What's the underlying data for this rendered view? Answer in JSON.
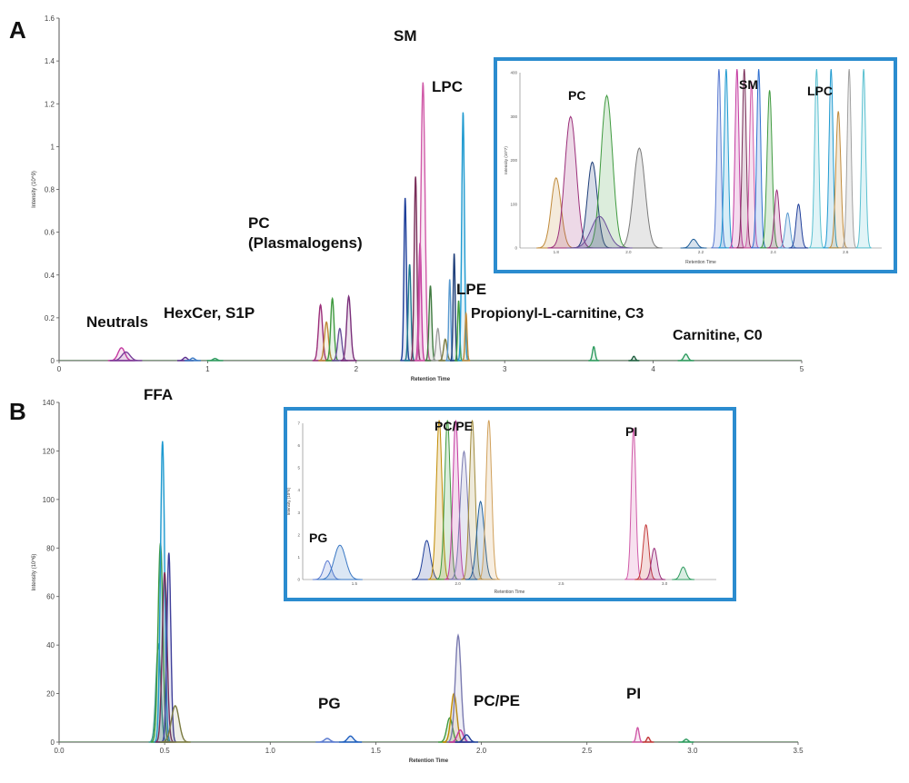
{
  "chart_data": [
    {
      "panel": "A",
      "type": "line",
      "xlabel": "Retention Time",
      "ylabel": "Intensity (10^9)",
      "xlim": [
        0,
        5
      ],
      "ylim": [
        0,
        1.6
      ],
      "x_ticks": [
        "0",
        "1",
        "2",
        "3",
        "4",
        "5"
      ],
      "y_ticks": [
        "0",
        "0.2",
        "0.4",
        "0.6",
        "0.8",
        "1",
        "1.2",
        "1.4",
        "1.6"
      ],
      "annotations": [
        "SM",
        "LPC",
        "PC",
        "(Plasmalogens)",
        "LPE",
        "Neutrals",
        "HexCer, S1P",
        "Propionyl-L-carnitine, C3",
        "Carnitine, C0"
      ],
      "peaks": [
        {
          "x": 0.42,
          "y": 0.06,
          "w": 0.05,
          "color": "#c43aa0"
        },
        {
          "x": 0.45,
          "y": 0.04,
          "w": 0.06,
          "color": "#7a3f9a"
        },
        {
          "x": 0.85,
          "y": 0.015,
          "w": 0.03,
          "color": "#5b2d8f"
        },
        {
          "x": 0.9,
          "y": 0.012,
          "w": 0.03,
          "color": "#3a78c4"
        },
        {
          "x": 1.05,
          "y": 0.01,
          "w": 0.03,
          "color": "#2e9b5f"
        },
        {
          "x": 1.76,
          "y": 0.26,
          "w": 0.03,
          "color": "#9b2f7a"
        },
        {
          "x": 1.8,
          "y": 0.18,
          "w": 0.03,
          "color": "#c08a3a"
        },
        {
          "x": 1.84,
          "y": 0.29,
          "w": 0.025,
          "color": "#3f9a3f"
        },
        {
          "x": 1.89,
          "y": 0.15,
          "w": 0.03,
          "color": "#6a4f9a"
        },
        {
          "x": 1.95,
          "y": 0.3,
          "w": 0.03,
          "color": "#7a2f7a"
        },
        {
          "x": 2.33,
          "y": 0.76,
          "w": 0.018,
          "color": "#1f3f9a"
        },
        {
          "x": 2.36,
          "y": 0.45,
          "w": 0.02,
          "color": "#1f7a8f"
        },
        {
          "x": 2.4,
          "y": 0.86,
          "w": 0.02,
          "color": "#7a2f5a"
        },
        {
          "x": 2.43,
          "y": 0.55,
          "w": 0.02,
          "color": "#c43aa0"
        },
        {
          "x": 2.45,
          "y": 1.3,
          "w": 0.03,
          "color": "#d05aa8"
        },
        {
          "x": 2.5,
          "y": 0.35,
          "w": 0.02,
          "color": "#3f7a3f"
        },
        {
          "x": 2.55,
          "y": 0.15,
          "w": 0.025,
          "color": "#a0a0a0"
        },
        {
          "x": 2.6,
          "y": 0.1,
          "w": 0.025,
          "color": "#7a7a3f"
        },
        {
          "x": 2.63,
          "y": 0.38,
          "w": 0.015,
          "color": "#5a9ad0"
        },
        {
          "x": 2.66,
          "y": 0.5,
          "w": 0.015,
          "color": "#1f3f7a"
        },
        {
          "x": 2.69,
          "y": 0.28,
          "w": 0.015,
          "color": "#3f9a3f"
        },
        {
          "x": 2.72,
          "y": 1.16,
          "w": 0.02,
          "color": "#1f9ad0"
        },
        {
          "x": 2.74,
          "y": 0.22,
          "w": 0.015,
          "color": "#c08a3a"
        },
        {
          "x": 3.6,
          "y": 0.065,
          "w": 0.02,
          "color": "#2e9b5f"
        },
        {
          "x": 3.87,
          "y": 0.02,
          "w": 0.02,
          "color": "#1f5f3f"
        },
        {
          "x": 4.22,
          "y": 0.03,
          "w": 0.03,
          "color": "#2e9b5f"
        }
      ]
    },
    {
      "panel": "A-inset",
      "type": "line",
      "xlabel": "Retention Time",
      "ylabel": "Intensity (10^7)",
      "annotations": [
        "PC",
        "SM",
        "LPC"
      ],
      "y_ticks": [
        "0",
        "100",
        "200",
        "300",
        "400"
      ],
      "x_ticks": [
        "1.8",
        "2.0",
        "2.2",
        "2.4",
        "2.6"
      ],
      "peaks": [
        {
          "x": 0.1,
          "y": 0.4,
          "w": 0.03,
          "color": "#c08a3a"
        },
        {
          "x": 0.14,
          "y": 0.75,
          "w": 0.035,
          "color": "#9b2f7a"
        },
        {
          "x": 0.2,
          "y": 0.49,
          "w": 0.03,
          "color": "#1f3f7a"
        },
        {
          "x": 0.24,
          "y": 0.87,
          "w": 0.035,
          "color": "#3f9a3f"
        },
        {
          "x": 0.33,
          "y": 0.57,
          "w": 0.035,
          "color": "#7a7a7a"
        },
        {
          "x": 0.22,
          "y": 0.18,
          "w": 0.05,
          "color": "#6a4f9a"
        },
        {
          "x": 0.48,
          "y": 0.05,
          "w": 0.02,
          "color": "#1f5f9a"
        },
        {
          "x": 0.55,
          "y": 1.2,
          "w": 0.012,
          "color": "#5a7ad0"
        },
        {
          "x": 0.57,
          "y": 1.2,
          "w": 0.012,
          "color": "#1f9ad0"
        },
        {
          "x": 0.6,
          "y": 1.2,
          "w": 0.012,
          "color": "#c43aa0"
        },
        {
          "x": 0.62,
          "y": 1.2,
          "w": 0.012,
          "color": "#7a2f5a"
        },
        {
          "x": 0.64,
          "y": 0.95,
          "w": 0.012,
          "color": "#d05aa8"
        },
        {
          "x": 0.66,
          "y": 1.2,
          "w": 0.012,
          "color": "#2e6fd0"
        },
        {
          "x": 0.69,
          "y": 0.9,
          "w": 0.015,
          "color": "#3f9a3f"
        },
        {
          "x": 0.71,
          "y": 0.33,
          "w": 0.015,
          "color": "#9b2f7a"
        },
        {
          "x": 0.74,
          "y": 0.2,
          "w": 0.015,
          "color": "#5a9ad0"
        },
        {
          "x": 0.77,
          "y": 0.25,
          "w": 0.015,
          "color": "#1f3f9a"
        },
        {
          "x": 0.82,
          "y": 1.2,
          "w": 0.012,
          "color": "#5ac0d0"
        },
        {
          "x": 0.86,
          "y": 1.2,
          "w": 0.012,
          "color": "#1f9ad0"
        },
        {
          "x": 0.88,
          "y": 0.78,
          "w": 0.015,
          "color": "#c08a3a"
        },
        {
          "x": 0.91,
          "y": 1.2,
          "w": 0.012,
          "color": "#a0a0a0"
        },
        {
          "x": 0.95,
          "y": 1.2,
          "w": 0.012,
          "color": "#5ac0d0"
        }
      ]
    },
    {
      "panel": "B",
      "type": "line",
      "xlabel": "Retention Time",
      "ylabel": "Intensity (10^6)",
      "xlim": [
        0,
        3.5
      ],
      "ylim": [
        0,
        140
      ],
      "x_ticks": [
        "0.0",
        "0.5",
        "1.0",
        "1.5",
        "2.0",
        "2.5",
        "3.0",
        "3.5"
      ],
      "y_ticks": [
        "0",
        "20",
        "40",
        "60",
        "80",
        "100",
        "120",
        "140"
      ],
      "annotations": [
        "FFA",
        "PG",
        "PC/PE",
        "PI"
      ],
      "peaks": [
        {
          "x": 0.47,
          "y": 40,
          "w": 0.025,
          "color": "#3f9a8f"
        },
        {
          "x": 0.48,
          "y": 82,
          "w": 0.025,
          "color": "#3f9a3f"
        },
        {
          "x": 0.49,
          "y": 124,
          "w": 0.022,
          "color": "#1f9ad0"
        },
        {
          "x": 0.5,
          "y": 70,
          "w": 0.025,
          "color": "#7a2f5a"
        },
        {
          "x": 0.52,
          "y": 78,
          "w": 0.02,
          "color": "#3f3f9a"
        },
        {
          "x": 0.55,
          "y": 15,
          "w": 0.04,
          "color": "#7a7a3f"
        },
        {
          "x": 1.27,
          "y": 1.5,
          "w": 0.03,
          "color": "#5a7ad0"
        },
        {
          "x": 1.38,
          "y": 2.5,
          "w": 0.03,
          "color": "#1f5fc0"
        },
        {
          "x": 1.85,
          "y": 10,
          "w": 0.03,
          "color": "#3f9a3f"
        },
        {
          "x": 1.87,
          "y": 20,
          "w": 0.03,
          "color": "#c08a00"
        },
        {
          "x": 1.89,
          "y": 44,
          "w": 0.03,
          "color": "#7a7ab0"
        },
        {
          "x": 1.9,
          "y": 5,
          "w": 0.03,
          "color": "#c43aa0"
        },
        {
          "x": 1.93,
          "y": 3,
          "w": 0.03,
          "color": "#1f3f9a"
        },
        {
          "x": 2.74,
          "y": 6,
          "w": 0.015,
          "color": "#d05aa8"
        },
        {
          "x": 2.79,
          "y": 2,
          "w": 0.015,
          "color": "#c43a3a"
        },
        {
          "x": 2.97,
          "y": 1.2,
          "w": 0.02,
          "color": "#2e9b5f"
        }
      ]
    },
    {
      "panel": "B-inset",
      "type": "line",
      "xlabel": "Retention Time",
      "ylabel": "Intensity (10^6)",
      "annotations": [
        "PC/PE",
        "PG",
        "PI"
      ],
      "y_ticks": [
        "0",
        "1",
        "2",
        "3",
        "4",
        "5",
        "6",
        "7"
      ],
      "x_ticks": [
        "1.5",
        "2.0",
        "2.5",
        "3.0"
      ],
      "peaks": [
        {
          "x": 0.06,
          "y": 0.12,
          "w": 0.02,
          "color": "#5a7ad0"
        },
        {
          "x": 0.09,
          "y": 0.22,
          "w": 0.03,
          "color": "#3a78c4"
        },
        {
          "x": 0.3,
          "y": 0.25,
          "w": 0.02,
          "color": "#1f3f9a"
        },
        {
          "x": 0.33,
          "y": 1.2,
          "w": 0.015,
          "color": "#c08a00"
        },
        {
          "x": 0.35,
          "y": 1.2,
          "w": 0.015,
          "color": "#3f9a3f"
        },
        {
          "x": 0.37,
          "y": 1.2,
          "w": 0.015,
          "color": "#c43aa0"
        },
        {
          "x": 0.39,
          "y": 0.82,
          "w": 0.02,
          "color": "#7a7ab0"
        },
        {
          "x": 0.41,
          "y": 1.2,
          "w": 0.015,
          "color": "#a08a3a"
        },
        {
          "x": 0.43,
          "y": 0.5,
          "w": 0.02,
          "color": "#1f5f9a"
        },
        {
          "x": 0.45,
          "y": 1.2,
          "w": 0.015,
          "color": "#d0a05a"
        },
        {
          "x": 0.8,
          "y": 0.97,
          "w": 0.012,
          "color": "#d05aa8"
        },
        {
          "x": 0.83,
          "y": 0.35,
          "w": 0.015,
          "color": "#c43a3a"
        },
        {
          "x": 0.85,
          "y": 0.2,
          "w": 0.015,
          "color": "#9b2f7a"
        },
        {
          "x": 0.92,
          "y": 0.08,
          "w": 0.015,
          "color": "#2e9b5f"
        }
      ]
    }
  ]
}
